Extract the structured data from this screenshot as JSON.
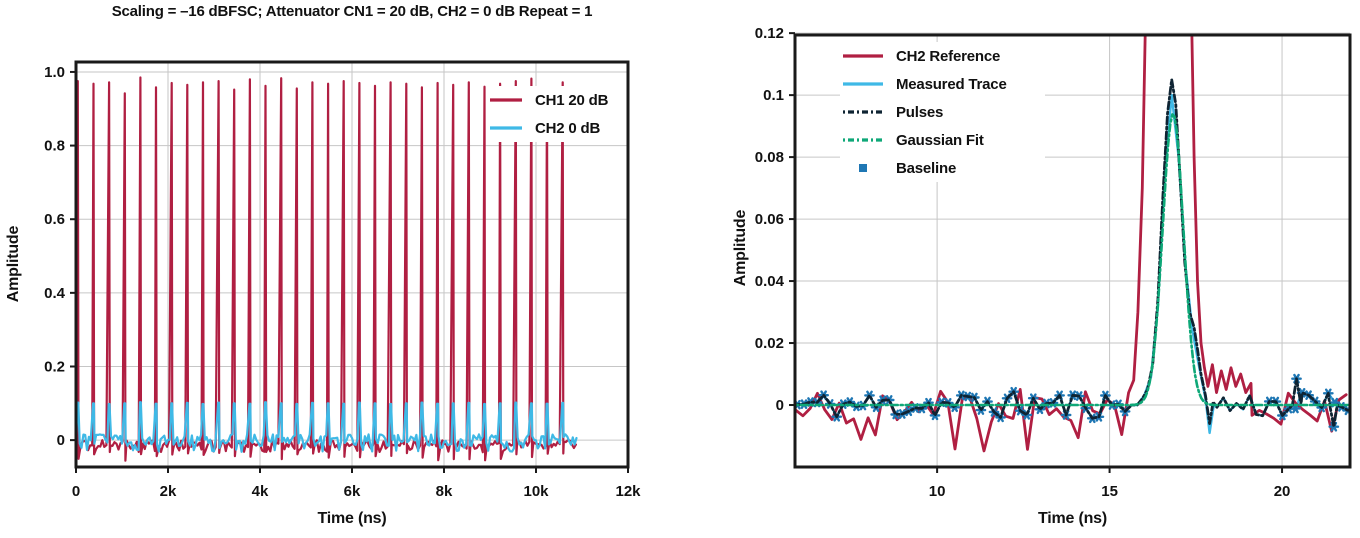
{
  "colors": {
    "crimson": "#b01f42",
    "cyan": "#3fb9e6",
    "navy": "#0f2433",
    "green": "#0ea878",
    "marker_blue": "#1f77b4",
    "axis": "#1a1a1a",
    "grid": "#c6c6c6",
    "text": "#111111",
    "background": "#ffffff"
  },
  "chart_data": [
    {
      "id": "pulse-train-overview",
      "type": "line",
      "title": "Scaling = –16 dBFSC; Attenuator CN1 = 20 dB, CH2 = 0 dB Repeat = 1",
      "xlabel": "Time (ns)",
      "ylabel": "Amplitude",
      "xlim": [
        0,
        12000
      ],
      "ylim": [
        -0.073,
        1.027
      ],
      "grid": true,
      "xticks": [
        {
          "v": 0,
          "l": "0"
        },
        {
          "v": 2000,
          "l": "2k"
        },
        {
          "v": 4000,
          "l": "4k"
        },
        {
          "v": 6000,
          "l": "6k"
        },
        {
          "v": 8000,
          "l": "8k"
        },
        {
          "v": 10000,
          "l": "10k"
        },
        {
          "v": 12000,
          "l": "12k"
        }
      ],
      "yticks": [
        {
          "v": 0,
          "l": "0"
        },
        {
          "v": 0.2,
          "l": "0.2"
        },
        {
          "v": 0.4,
          "l": "0.4"
        },
        {
          "v": 0.6,
          "l": "0.6"
        },
        {
          "v": 0.8,
          "l": "0.8"
        },
        {
          "v": 1.0,
          "l": "1.0"
        }
      ],
      "legend": [
        {
          "label": "CH1 20 dB"
        },
        {
          "label": "CH2 0 dB"
        }
      ],
      "series": [
        {
          "name": "CH1 20 dB",
          "color": "crimson",
          "style": "pulse_train",
          "width": 2.2,
          "x0": 0,
          "x1": 10900,
          "step": 44,
          "amp": 0.01,
          "mean": -0.01,
          "dip_chance": 0.22,
          "dip_level": -0.027,
          "undershoot": -0.044,
          "seed": 5,
          "pulse_times": [
            40,
            380,
            720,
            1060,
            1400,
            1740,
            2080,
            2420,
            2760,
            3100,
            3440,
            3780,
            4120,
            4460,
            4800,
            5140,
            5480,
            5820,
            6160,
            6500,
            6840,
            7180,
            7520,
            7860,
            8200,
            8540,
            8880,
            9220,
            9560,
            9900,
            10240,
            10580
          ],
          "pulse_heights": [
            0.975,
            0.968,
            0.972,
            0.942,
            0.985,
            0.958,
            0.97,
            0.965,
            0.972,
            0.975,
            0.952,
            0.98,
            0.962,
            0.983,
            0.955,
            0.972,
            0.968,
            0.975,
            0.97,
            0.962,
            0.972,
            0.968,
            0.958,
            0.97,
            0.965,
            0.972,
            0.96,
            0.968,
            0.975,
            0.982,
            0.958,
            0.972
          ]
        },
        {
          "name": "CH2 0 dB",
          "color": "cyan",
          "style": "pulse_train",
          "width": 2.2,
          "x0": 0,
          "x1": 10900,
          "step": 40,
          "amp": 0.016,
          "mean": 0.0,
          "dip_chance": 0.12,
          "dip_level": -0.026,
          "plateau": 9,
          "seed": 6,
          "pulse_times": [
            40,
            380,
            720,
            1060,
            1400,
            1740,
            2080,
            2420,
            2760,
            3100,
            3440,
            3780,
            4120,
            4460,
            4800,
            5140,
            5480,
            5820,
            6160,
            6500,
            6840,
            7180,
            7520,
            7860,
            8200,
            8540,
            8880,
            9220,
            9560,
            9900,
            10240,
            10580
          ],
          "pulse_heights": [
            0.102,
            0.1,
            0.098,
            0.1,
            0.103,
            0.099,
            0.1,
            0.101,
            0.098,
            0.102,
            0.1,
            0.099,
            0.103,
            0.1,
            0.098,
            0.101,
            0.1,
            0.099,
            0.102,
            0.1,
            0.098,
            0.1,
            0.102,
            0.099,
            0.1,
            0.101,
            0.098,
            0.1,
            0.102,
            0.1,
            0.099,
            0.101
          ]
        }
      ]
    },
    {
      "id": "pulse-zoom",
      "type": "line",
      "title": "",
      "xlabel": "Time (ns)",
      "ylabel": "Amplitude",
      "xlim": [
        5.88,
        21.97
      ],
      "ylim": [
        -0.02,
        0.1194
      ],
      "grid": true,
      "xticks": [
        {
          "v": 10,
          "l": "10"
        },
        {
          "v": 15,
          "l": "15"
        },
        {
          "v": 20,
          "l": "20"
        }
      ],
      "yticks": [
        {
          "v": 0,
          "l": "0"
        },
        {
          "v": 0.02,
          "l": "0.02"
        },
        {
          "v": 0.04,
          "l": "0.04"
        },
        {
          "v": 0.06,
          "l": "0.06"
        },
        {
          "v": 0.08,
          "l": "0.08"
        },
        {
          "v": 0.1,
          "l": "0.1"
        },
        {
          "v": 0.12,
          "l": "0.12"
        }
      ],
      "legend": [
        {
          "label": "CH2 Reference"
        },
        {
          "label": "Measured Trace"
        },
        {
          "label": "Pulses"
        },
        {
          "label": "Gaussian Fit"
        },
        {
          "label": "Baseline"
        }
      ],
      "peak": {
        "center": 16.8,
        "pulses_peak": 0.105,
        "gaussian_peak": 0.094
      },
      "series": [
        {
          "name": "Measured Trace",
          "color": "cyan",
          "style": "noisy_line",
          "width": 2.4,
          "x0": 5.95,
          "x1": 22.0,
          "step": 0.19,
          "amp": 0.0045,
          "mean": 0.0,
          "seed": 11,
          "overrides": [
            [
              [
                15.8,
                0.0
              ],
              [
                16.0,
                0.003
              ],
              [
                16.2,
                0.009
              ],
              [
                16.4,
                0.032
              ],
              [
                16.6,
                0.075
              ],
              [
                16.8,
                0.1
              ],
              [
                17.0,
                0.08
              ],
              [
                17.2,
                0.045
              ],
              [
                17.4,
                0.024
              ],
              [
                17.6,
                0.012
              ],
              [
                17.78,
                0.002
              ],
              [
                17.9,
                -0.009
              ],
              [
                18.02,
                0.0
              ]
            ]
          ]
        },
        {
          "name": "CH2 Reference",
          "color": "crimson",
          "style": "noisy_line",
          "width": 2.8,
          "x0": 5.9,
          "x1": 22.0,
          "step": 0.21,
          "amp": 0.0062,
          "mean": -0.0008,
          "dip_chance": 0.1,
          "dip_level": -0.011,
          "seed": 21,
          "overrides": [
            [
              [
                15.55,
                0.004
              ],
              [
                15.7,
                0.008
              ],
              [
                15.82,
                0.03
              ],
              [
                15.95,
                0.07
              ],
              [
                16.05,
                0.13
              ],
              [
                16.1,
                0.16
              ],
              [
                17.32,
                0.16
              ],
              [
                17.45,
                0.08
              ],
              [
                17.55,
                0.04
              ],
              [
                17.65,
                0.02
              ],
              [
                17.75,
                0.012
              ],
              [
                17.85,
                0.006
              ],
              [
                17.98,
                0.013
              ],
              [
                18.1,
                0.004
              ],
              [
                18.24,
                0.011
              ],
              [
                18.38,
                0.005
              ],
              [
                18.52,
                0.012
              ],
              [
                18.66,
                0.006
              ],
              [
                18.8,
                0.01
              ],
              [
                18.95,
                0.004
              ],
              [
                19.1,
                0.007
              ]
            ]
          ]
        },
        {
          "name": "Baseline",
          "color": "marker_blue",
          "style": "scatter_on_noise",
          "marker": "star",
          "x0": 5.95,
          "x1": 22.0,
          "step": 0.19,
          "amp": 0.0045,
          "mean": 0.0,
          "seed": 11,
          "ranges": [
            [
              5.95,
              15.45
            ],
            [
              19.5,
              21.98
            ]
          ],
          "extra": [
            [
              20.42,
              0.0085
            ],
            [
              21.5,
              -0.007
            ]
          ]
        },
        {
          "name": "Pulses",
          "color": "navy",
          "style": "noisy_line",
          "width": 2.8,
          "dash": "2 3 7 3",
          "x0": 5.95,
          "x1": 22.0,
          "step": 0.19,
          "amp": 0.0045,
          "mean": 0.0,
          "seed": 11,
          "overrides": [
            [
              [
                15.8,
                0.0
              ],
              [
                15.95,
                0.002
              ],
              [
                16.1,
                0.005
              ],
              [
                16.25,
                0.013
              ],
              [
                16.4,
                0.034
              ],
              [
                16.55,
                0.068
              ],
              [
                16.68,
                0.094
              ],
              [
                16.8,
                0.105
              ],
              [
                16.92,
                0.097
              ],
              [
                17.05,
                0.072
              ],
              [
                17.18,
                0.046
              ],
              [
                17.32,
                0.03
              ],
              [
                17.45,
                0.025
              ],
              [
                17.55,
                0.018
              ],
              [
                17.65,
                0.01
              ],
              [
                17.78,
                0.003
              ],
              [
                17.9,
                -0.006
              ],
              [
                18.0,
                0.001
              ]
            ],
            [
              [
                20.3,
                0.0
              ],
              [
                20.42,
                0.0085
              ],
              [
                20.55,
                0.0
              ]
            ],
            [
              [
                21.4,
                -0.001
              ],
              [
                21.5,
                -0.007
              ],
              [
                21.6,
                0.0
              ]
            ]
          ]
        },
        {
          "name": "Gaussian Fit",
          "color": "green",
          "style": "gaussian",
          "width": 2.6,
          "dash": "2 3 7 3",
          "x0": 5.9,
          "x1": 22.0,
          "amp": 0.094,
          "mu": 16.84,
          "sigma": 0.3,
          "base": 0.0
        }
      ]
    }
  ]
}
